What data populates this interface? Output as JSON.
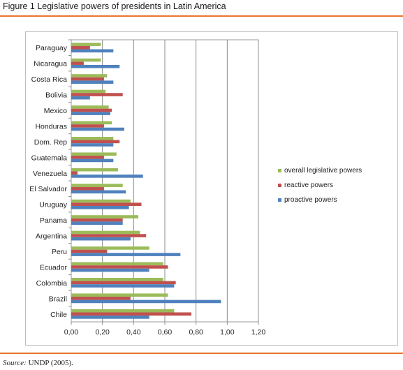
{
  "figure": {
    "title": "Figure 1 Legislative powers of presidents in Latin America",
    "source_label": "Source:",
    "source_text": " UNDP (2005).",
    "accent_color": "#e8762b"
  },
  "chart_data": {
    "type": "bar",
    "orientation": "horizontal",
    "categories": [
      "Paraguay",
      "Nicaragua",
      "Costa Rica",
      "Bolivia",
      "Mexico",
      "Honduras",
      "Dom. Rep",
      "Guatemala",
      "Venezuela",
      "El Salvador",
      "Uruguay",
      "Panama",
      "Argentina",
      "Peru",
      "Ecuador",
      "Colombia",
      "Brazil",
      "Chile"
    ],
    "series": [
      {
        "name": "overall legislative powers",
        "color": "#9bbb59",
        "values": [
          0.19,
          0.19,
          0.23,
          0.22,
          0.24,
          0.26,
          0.27,
          0.29,
          0.3,
          0.33,
          0.38,
          0.43,
          0.44,
          0.5,
          0.59,
          0.59,
          0.62,
          0.66
        ]
      },
      {
        "name": "reactive powers",
        "color": "#c0504d",
        "values": [
          0.12,
          0.08,
          0.21,
          0.33,
          0.26,
          0.21,
          0.31,
          0.21,
          0.04,
          0.21,
          0.45,
          0.33,
          0.48,
          0.23,
          0.62,
          0.67,
          0.38,
          0.77
        ]
      },
      {
        "name": "proactive powers",
        "color": "#4f81bd",
        "values": [
          0.27,
          0.31,
          0.27,
          0.12,
          0.25,
          0.34,
          0.27,
          0.27,
          0.46,
          0.35,
          0.37,
          0.33,
          0.38,
          0.7,
          0.5,
          0.66,
          0.96,
          0.5
        ]
      }
    ],
    "xlim": [
      0,
      1.2
    ],
    "xticks": [
      "0,00",
      "0,20",
      "0,40",
      "0,60",
      "0,80",
      "1,00",
      "1,20"
    ],
    "xtick_values": [
      0,
      0.2,
      0.4,
      0.6,
      0.8,
      1.0,
      1.2
    ],
    "grid": "vertical",
    "legend_position": "right",
    "legend_order": [
      "overall legislative powers",
      "reactive powers",
      "proactive powers"
    ]
  }
}
